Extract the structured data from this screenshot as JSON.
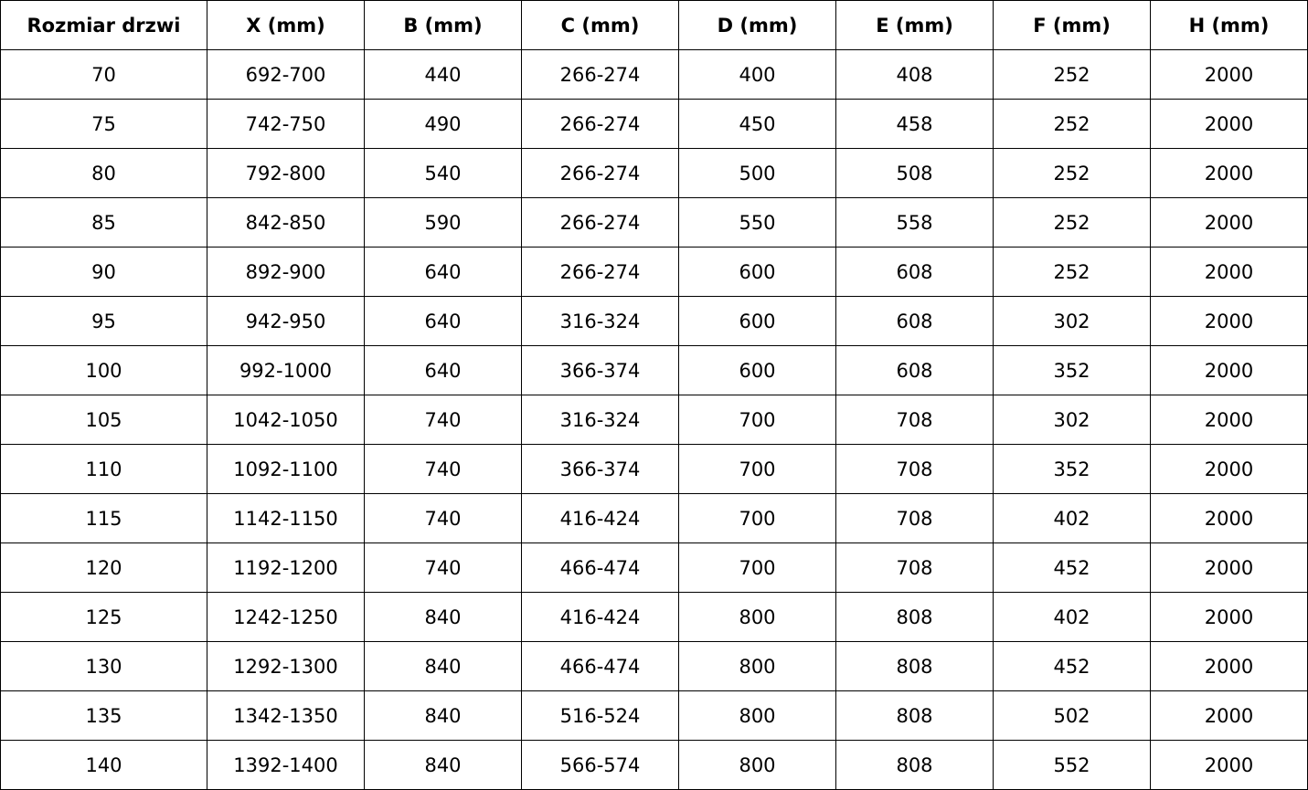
{
  "table": {
    "headers": [
      "Rozmiar drzwi",
      "X (mm)",
      "B (mm)",
      "C (mm)",
      "D (mm)",
      "E (mm)",
      "F (mm)",
      "H (mm)"
    ],
    "rows": [
      [
        "70",
        "692-700",
        "440",
        "266-274",
        "400",
        "408",
        "252",
        "2000"
      ],
      [
        "75",
        "742-750",
        "490",
        "266-274",
        "450",
        "458",
        "252",
        "2000"
      ],
      [
        "80",
        "792-800",
        "540",
        "266-274",
        "500",
        "508",
        "252",
        "2000"
      ],
      [
        "85",
        "842-850",
        "590",
        "266-274",
        "550",
        "558",
        "252",
        "2000"
      ],
      [
        "90",
        "892-900",
        "640",
        "266-274",
        "600",
        "608",
        "252",
        "2000"
      ],
      [
        "95",
        "942-950",
        "640",
        "316-324",
        "600",
        "608",
        "302",
        "2000"
      ],
      [
        "100",
        "992-1000",
        "640",
        "366-374",
        "600",
        "608",
        "352",
        "2000"
      ],
      [
        "105",
        "1042-1050",
        "740",
        "316-324",
        "700",
        "708",
        "302",
        "2000"
      ],
      [
        "110",
        "1092-1100",
        "740",
        "366-374",
        "700",
        "708",
        "352",
        "2000"
      ],
      [
        "115",
        "1142-1150",
        "740",
        "416-424",
        "700",
        "708",
        "402",
        "2000"
      ],
      [
        "120",
        "1192-1200",
        "740",
        "466-474",
        "700",
        "708",
        "452",
        "2000"
      ],
      [
        "125",
        "1242-1250",
        "840",
        "416-424",
        "800",
        "808",
        "402",
        "2000"
      ],
      [
        "130",
        "1292-1300",
        "840",
        "466-474",
        "800",
        "808",
        "452",
        "2000"
      ],
      [
        "135",
        "1342-1350",
        "840",
        "516-524",
        "800",
        "808",
        "502",
        "2000"
      ],
      [
        "140",
        "1392-1400",
        "840",
        "566-574",
        "800",
        "808",
        "552",
        "2000"
      ]
    ]
  }
}
